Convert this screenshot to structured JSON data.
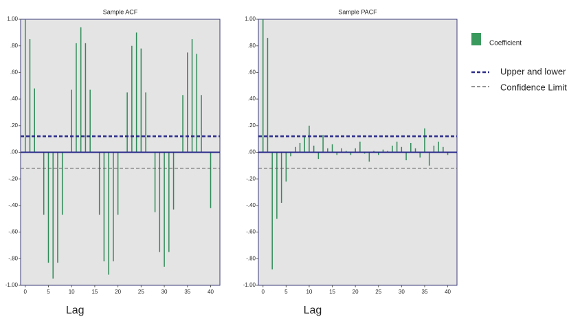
{
  "chart_data": [
    {
      "type": "bar",
      "title": "Sample ACF",
      "x_label": "Lag",
      "color": "#2e8b57",
      "x": [
        0,
        1,
        2,
        3,
        4,
        5,
        6,
        7,
        8,
        9,
        10,
        11,
        12,
        13,
        14,
        15,
        16,
        17,
        18,
        19,
        20,
        21,
        22,
        23,
        24,
        25,
        26,
        27,
        28,
        29,
        30,
        31,
        32,
        33,
        34,
        35,
        36,
        37,
        38,
        39,
        40
      ],
      "values": [
        1.0,
        0.85,
        0.48,
        0.0,
        -0.47,
        -0.83,
        -0.95,
        -0.83,
        -0.47,
        0.0,
        0.47,
        0.82,
        0.94,
        0.82,
        0.47,
        0.0,
        -0.47,
        -0.82,
        -0.92,
        -0.82,
        -0.47,
        0.0,
        0.45,
        0.8,
        0.9,
        0.78,
        0.45,
        0.0,
        -0.45,
        -0.75,
        -0.86,
        -0.75,
        -0.43,
        0.0,
        0.43,
        0.75,
        0.85,
        0.74,
        0.43,
        0.0,
        -0.42
      ],
      "upper_limit": 0.12,
      "lower_limit": -0.12,
      "upper_color": "#2a2a8a",
      "lower_color": "#555555",
      "xlim": [
        -1,
        42
      ],
      "ylim": [
        -1,
        1
      ],
      "xticks": [
        0,
        5,
        10,
        15,
        20,
        25,
        30,
        35,
        40
      ],
      "yticks": [
        {
          "value": 1,
          "label": "1.00"
        },
        {
          "value": 0.8,
          "label": ".80"
        },
        {
          "value": 0.6,
          "label": ".60"
        },
        {
          "value": 0.4,
          "label": ".40"
        },
        {
          "value": 0.2,
          "label": ".20"
        },
        {
          "value": 0,
          "label": ".00"
        },
        {
          "value": -0.2,
          "label": "-.20"
        },
        {
          "value": -0.4,
          "label": "-.40"
        },
        {
          "value": -0.6,
          "label": "-.60"
        },
        {
          "value": -0.8,
          "label": "-.80"
        },
        {
          "value": -1,
          "label": "-1.00"
        }
      ]
    },
    {
      "type": "bar",
      "title": "Sample PACF",
      "x_label": "Lag",
      "color": "#2e8b57",
      "x": [
        0,
        1,
        2,
        3,
        4,
        5,
        6,
        7,
        8,
        9,
        10,
        11,
        12,
        13,
        14,
        15,
        16,
        17,
        18,
        19,
        20,
        21,
        22,
        23,
        24,
        25,
        26,
        27,
        28,
        29,
        30,
        31,
        32,
        33,
        34,
        35,
        36,
        37,
        38,
        39,
        40
      ],
      "values": [
        1.0,
        0.86,
        -0.88,
        -0.5,
        -0.38,
        -0.22,
        -0.03,
        0.04,
        0.07,
        0.12,
        0.2,
        0.05,
        -0.05,
        0.13,
        0.03,
        0.06,
        -0.02,
        0.03,
        0.01,
        -0.02,
        0.03,
        0.08,
        -0.01,
        -0.07,
        0.01,
        -0.02,
        0.02,
        0.01,
        0.05,
        0.08,
        0.04,
        -0.06,
        0.07,
        0.03,
        -0.04,
        0.18,
        -0.1,
        0.05,
        0.08,
        0.04,
        -0.02
      ],
      "upper_limit": 0.12,
      "lower_limit": -0.12,
      "upper_color": "#2a2a8a",
      "lower_color": "#555555",
      "xlim": [
        -1,
        42
      ],
      "ylim": [
        -1,
        1
      ],
      "xticks": [
        0,
        5,
        10,
        15,
        20,
        25,
        30,
        35,
        40
      ],
      "yticks": [
        {
          "value": 1,
          "label": "1.00"
        },
        {
          "value": 0.8,
          "label": ".80"
        },
        {
          "value": 0.6,
          "label": ".60"
        },
        {
          "value": 0.4,
          "label": ".40"
        },
        {
          "value": 0.2,
          "label": ".20"
        },
        {
          "value": 0,
          "label": ".00"
        },
        {
          "value": -0.2,
          "label": "-.20"
        },
        {
          "value": -0.4,
          "label": "-.40"
        },
        {
          "value": -0.6,
          "label": "-.60"
        },
        {
          "value": -0.8,
          "label": "-.80"
        },
        {
          "value": -1,
          "label": "-1.00"
        }
      ]
    }
  ],
  "legend": {
    "items": [
      "Coefficient",
      "Upper and lower",
      "Confidence Limit"
    ]
  }
}
